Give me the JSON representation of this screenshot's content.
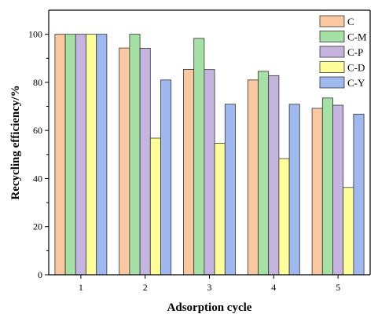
{
  "chart_data": {
    "type": "bar",
    "xlabel": "Adsorption cycle",
    "ylabel": "Recycling efficiency/%",
    "ylim": [
      0,
      110
    ],
    "yticks": [
      0,
      20,
      40,
      60,
      80,
      100
    ],
    "categories": [
      "1",
      "2",
      "3",
      "4",
      "5"
    ],
    "legend_position": "top-right",
    "grid": false,
    "series": [
      {
        "name": "C",
        "color": "#fac8a0",
        "values": [
          100,
          94.3,
          85.4,
          81.0,
          69.2
        ]
      },
      {
        "name": "C-M",
        "color": "#a5e0a5",
        "values": [
          100,
          100,
          98.3,
          84.6,
          73.5
        ]
      },
      {
        "name": "C-P",
        "color": "#c6b4e0",
        "values": [
          100,
          94.2,
          85.3,
          82.8,
          70.5
        ]
      },
      {
        "name": "C-D",
        "color": "#ffff99",
        "values": [
          100,
          56.8,
          54.7,
          48.3,
          36.3
        ]
      },
      {
        "name": "C-Y",
        "color": "#a0b8f0",
        "values": [
          100,
          81.0,
          70.9,
          70.9,
          66.8
        ]
      }
    ]
  }
}
